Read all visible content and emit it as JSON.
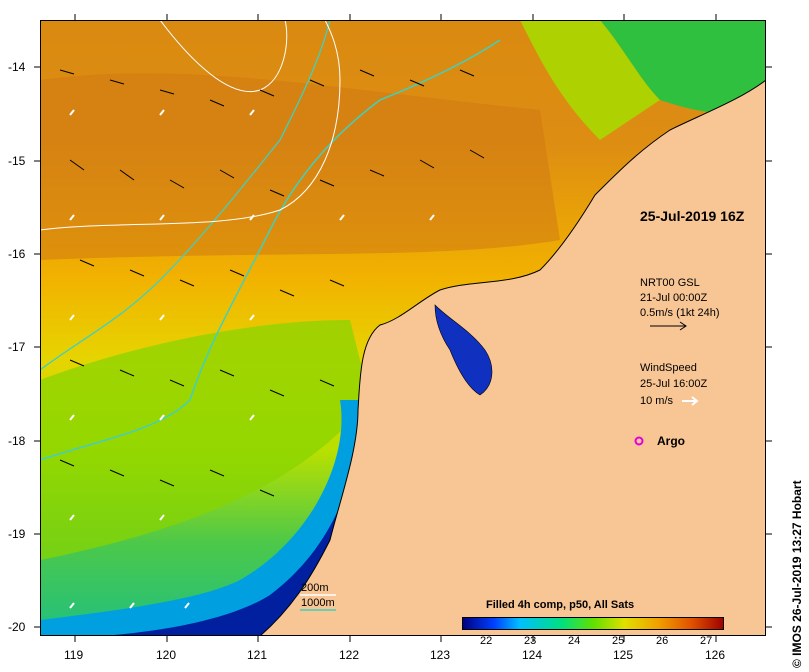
{
  "map": {
    "timestamp_title": "25-Jul-2019 16Z",
    "y_ticks": [
      "-14",
      "-15",
      "-16",
      "-17",
      "-18",
      "-19",
      "-20"
    ],
    "x_ticks": [
      "119",
      "120",
      "121",
      "122",
      "123",
      "124",
      "125",
      "126"
    ],
    "current_legend": {
      "line1": "NRT00 GSL",
      "line2": "21-Jul 00:00Z",
      "line3": "0.5m/s (1kt 24h)"
    },
    "wind_legend": {
      "line1": "WindSpeed",
      "line2": "25-Jul 16:00Z",
      "line3": "10 m/s"
    },
    "argo_label": "Argo",
    "isobath_legend": {
      "line1": "200m",
      "line2": "1000m"
    },
    "colorbar": {
      "title": "Filled 4h comp, p50, All Sats",
      "ticks": [
        "22",
        "23",
        "24",
        "25",
        "26",
        "27"
      ]
    },
    "credit": "© IMOS 26-Jul-2019 13:27 Hobart",
    "colors": {
      "land": "#f8c594",
      "shelf_isobath": "#40d0c0",
      "deep_isobath": "#ffffff",
      "argo_marker": "#e000e0"
    }
  }
}
